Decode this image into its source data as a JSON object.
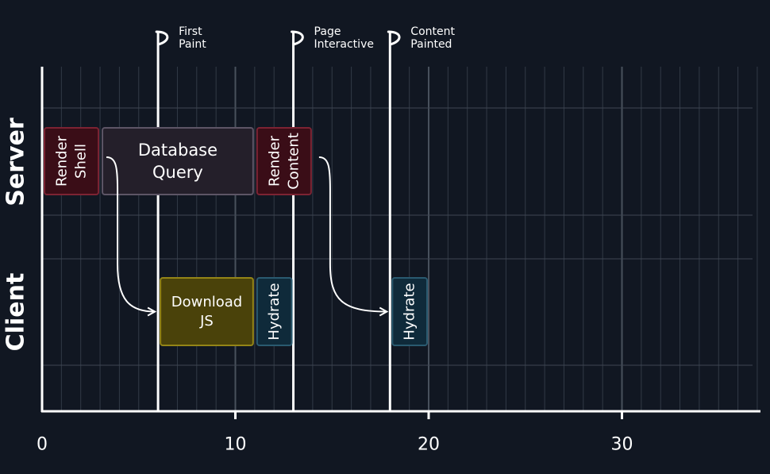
{
  "axis": {
    "ticks": [
      0,
      10,
      20,
      30
    ],
    "xlim": [
      0,
      37
    ]
  },
  "lanes": {
    "server": "Server",
    "client": "Client"
  },
  "markers": [
    {
      "id": "first-paint",
      "x": 6,
      "lines": [
        "First",
        "Paint"
      ]
    },
    {
      "id": "page-interactive",
      "x": 13,
      "lines": [
        "Page",
        "Interactive"
      ]
    },
    {
      "id": "content-painted",
      "x": 18,
      "lines": [
        "Content",
        "Painted"
      ]
    }
  ],
  "tasks": [
    {
      "id": "render-shell",
      "lane": "server",
      "start": 0,
      "end": 3,
      "lines": [
        "Render",
        "Shell"
      ],
      "orientation": "vertical",
      "kind": "render"
    },
    {
      "id": "database-query",
      "lane": "server",
      "start": 3,
      "end": 11,
      "lines": [
        "Database",
        "Query"
      ],
      "orientation": "horizontal",
      "kind": "query"
    },
    {
      "id": "render-content",
      "lane": "server",
      "start": 11,
      "end": 14,
      "lines": [
        "Render",
        "Content"
      ],
      "orientation": "vertical",
      "kind": "render"
    },
    {
      "id": "download-js",
      "lane": "client",
      "start": 6,
      "end": 11,
      "lines": [
        "Download",
        "JS"
      ],
      "orientation": "horizontal",
      "kind": "download"
    },
    {
      "id": "hydrate-1",
      "lane": "client",
      "start": 11,
      "end": 13,
      "lines": [
        "Hydrate"
      ],
      "orientation": "vertical",
      "kind": "hydrate"
    },
    {
      "id": "hydrate-2",
      "lane": "client",
      "start": 18,
      "end": 20,
      "lines": [
        "Hydrate"
      ],
      "orientation": "vertical",
      "kind": "hydrate"
    }
  ],
  "arrows": [
    {
      "id": "shell-to-download",
      "from": "render-shell",
      "to": "download-js"
    },
    {
      "id": "content-to-hydrate",
      "from": "render-content",
      "to": "hydrate-2"
    }
  ],
  "colors": {
    "background": "#111722",
    "grid": "#323a46",
    "render": {
      "fill": "#3a0d17",
      "stroke": "#7c2333"
    },
    "query": {
      "fill": "#241f2a",
      "stroke": "#5d5566"
    },
    "download": {
      "fill": "#4a420a",
      "stroke": "#948517"
    },
    "hydrate": {
      "fill": "#0f2a3a",
      "stroke": "#2a5a70"
    }
  }
}
